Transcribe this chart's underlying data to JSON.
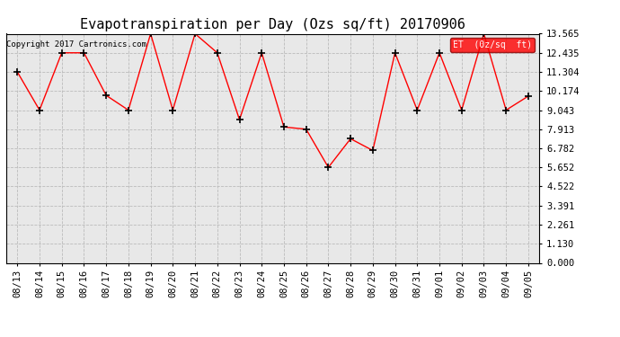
{
  "title": "Evapotranspiration per Day (Ozs sq/ft) 20170906",
  "copyright_text": "Copyright 2017 Cartronics.com",
  "legend_label": "ET  (0z/sq  ft)",
  "dates": [
    "08/13",
    "08/14",
    "08/15",
    "08/16",
    "08/17",
    "08/18",
    "08/19",
    "08/20",
    "08/21",
    "08/22",
    "08/23",
    "08/24",
    "08/25",
    "08/26",
    "08/27",
    "08/28",
    "08/29",
    "08/30",
    "08/31",
    "09/01",
    "09/02",
    "09/03",
    "09/04",
    "09/05"
  ],
  "values": [
    11.304,
    9.043,
    12.435,
    12.435,
    9.913,
    9.043,
    13.565,
    9.043,
    13.565,
    12.435,
    8.478,
    12.435,
    8.043,
    7.913,
    5.652,
    7.348,
    6.652,
    12.435,
    9.043,
    12.435,
    9.043,
    13.565,
    9.043,
    9.87
  ],
  "ylim": [
    0,
    13.565
  ],
  "yticks": [
    0.0,
    1.13,
    2.261,
    3.391,
    4.522,
    5.652,
    6.782,
    7.913,
    9.043,
    10.174,
    11.304,
    12.435,
    13.565
  ],
  "line_color": "red",
  "marker": "+",
  "marker_color": "black",
  "bg_color": "#ffffff",
  "plot_bg_color": "#e8e8e8",
  "grid_color": "#bbbbbb",
  "title_fontsize": 11,
  "tick_fontsize": 7.5,
  "copyright_fontsize": 6.5,
  "legend_bg": "red",
  "legend_fg": "white",
  "legend_fontsize": 7
}
